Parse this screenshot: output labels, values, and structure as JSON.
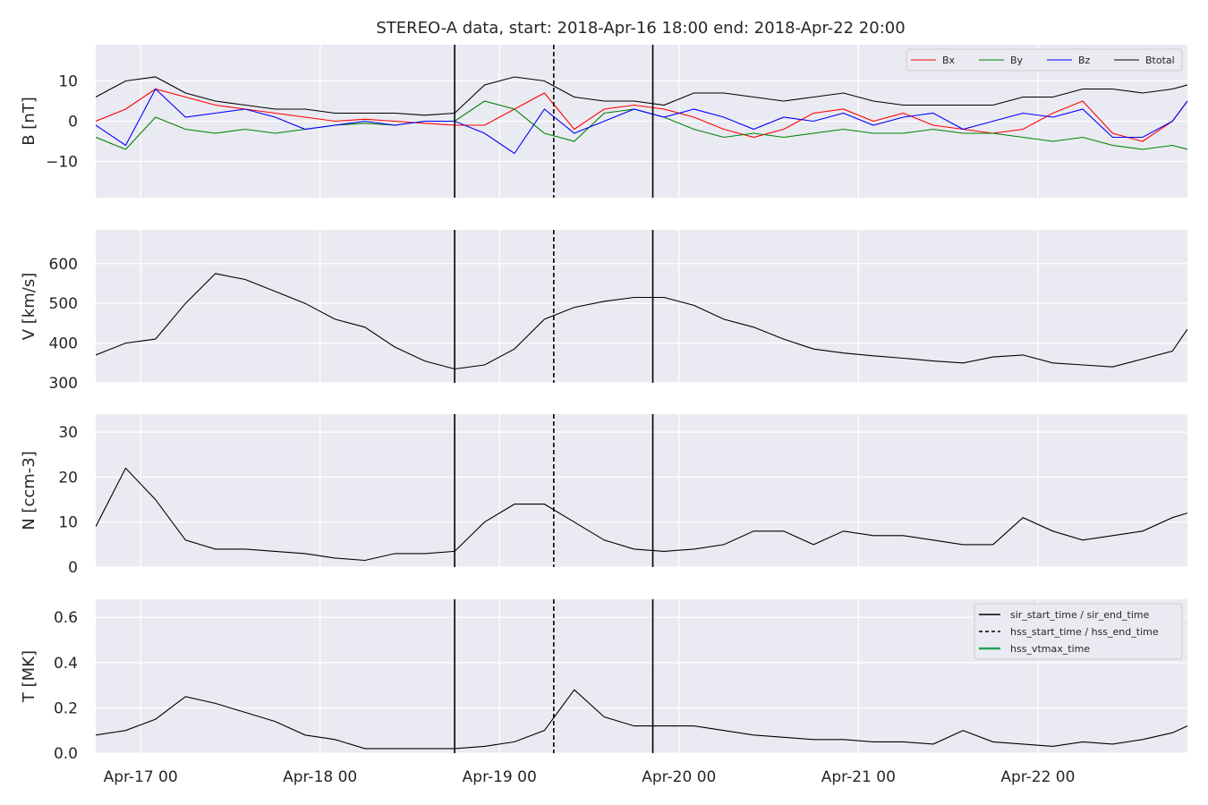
{
  "title": "STEREO-A data, start: 2018-Apr-16 18:00  end: 2018-Apr-22 20:00",
  "colors": {
    "panel_bg": "#eaeaf2",
    "grid": "#ffffff",
    "Bx": "#ff0000",
    "By": "#008000",
    "Bz": "#0000ff",
    "Btotal": "#000000",
    "hss_vtmax": "#2ca05a"
  },
  "x_tick_labels": [
    "Apr-17 00",
    "Apr-18 00",
    "Apr-19 00",
    "Apr-20 00",
    "Apr-21 00",
    "Apr-22 00"
  ],
  "event_lines": [
    {
      "style": "solid",
      "time": "2018-04-18 18:00"
    },
    {
      "style": "dashed",
      "time": "2018-04-19 07:15"
    },
    {
      "style": "solid",
      "time": "2018-04-19 20:30"
    }
  ],
  "legend_top": [
    "Bx",
    "By",
    "Bz",
    "Btotal"
  ],
  "legend_bottom": [
    "sir_start_time / sir_end_time",
    "hss_start_time / hss_end_time",
    "hss_vtmax_time"
  ],
  "chart_data": [
    {
      "type": "line",
      "ylabel": "B [nT]",
      "ylim": [
        -19,
        19
      ],
      "yticks": [
        -10,
        0,
        10
      ],
      "ytick_labels": [
        "−10",
        "0",
        "10"
      ],
      "xlim": [
        "2018-04-16 18:00",
        "2018-04-22 20:00"
      ],
      "x": [
        "2018-04-16 18:00",
        "2018-04-16 22:00",
        "2018-04-17 02:00",
        "2018-04-17 06:00",
        "2018-04-17 10:00",
        "2018-04-17 14:00",
        "2018-04-17 18:00",
        "2018-04-17 22:00",
        "2018-04-18 02:00",
        "2018-04-18 06:00",
        "2018-04-18 10:00",
        "2018-04-18 14:00",
        "2018-04-18 18:00",
        "2018-04-18 22:00",
        "2018-04-19 02:00",
        "2018-04-19 06:00",
        "2018-04-19 10:00",
        "2018-04-19 14:00",
        "2018-04-19 18:00",
        "2018-04-19 22:00",
        "2018-04-20 02:00",
        "2018-04-20 06:00",
        "2018-04-20 10:00",
        "2018-04-20 14:00",
        "2018-04-20 18:00",
        "2018-04-20 22:00",
        "2018-04-21 02:00",
        "2018-04-21 06:00",
        "2018-04-21 10:00",
        "2018-04-21 14:00",
        "2018-04-21 18:00",
        "2018-04-21 22:00",
        "2018-04-22 02:00",
        "2018-04-22 06:00",
        "2018-04-22 10:00",
        "2018-04-22 14:00",
        "2018-04-22 18:00",
        "2018-04-22 20:00"
      ],
      "series": [
        {
          "name": "Bx",
          "values": [
            0,
            3,
            8,
            6,
            4,
            3,
            2,
            1,
            0,
            0.5,
            0,
            -0.5,
            -1,
            -1,
            3,
            7,
            -2,
            3,
            4,
            3,
            1,
            -2,
            -4,
            -2,
            2,
            3,
            0,
            2,
            -1,
            -2,
            -3,
            -2,
            2,
            5,
            -3,
            -5,
            0,
            5
          ]
        },
        {
          "name": "By",
          "values": [
            -4,
            -7,
            1,
            -2,
            -3,
            -2,
            -3,
            -2,
            -1,
            -0.5,
            -1,
            0,
            0,
            5,
            3,
            -3,
            -5,
            2,
            3,
            1,
            -2,
            -4,
            -3,
            -4,
            -3,
            -2,
            -3,
            -3,
            -2,
            -3,
            -3,
            -4,
            -5,
            -4,
            -6,
            -7,
            -6,
            -7
          ]
        },
        {
          "name": "Bz",
          "values": [
            -1,
            -6,
            8,
            1,
            2,
            3,
            1,
            -2,
            -1,
            0,
            -1,
            0,
            0,
            -3,
            -8,
            3,
            -3,
            0,
            3,
            1,
            3,
            1,
            -2,
            1,
            0,
            2,
            -1,
            1,
            2,
            -2,
            0,
            2,
            1,
            3,
            -4,
            -4,
            0,
            5
          ]
        },
        {
          "name": "Btotal",
          "values": [
            6,
            10,
            11,
            7,
            5,
            4,
            3,
            3,
            2,
            2,
            2,
            1.5,
            2,
            9,
            11,
            10,
            6,
            5,
            5,
            4,
            7,
            7,
            6,
            5,
            6,
            7,
            5,
            4,
            4,
            4,
            4,
            6,
            6,
            8,
            8,
            7,
            8,
            9
          ]
        }
      ]
    },
    {
      "type": "line",
      "ylabel": "V [km/s]",
      "ylim": [
        300,
        685
      ],
      "yticks": [
        300,
        400,
        500,
        600
      ],
      "ytick_labels": [
        "300",
        "400",
        "500",
        "600"
      ],
      "xlim": [
        "2018-04-16 18:00",
        "2018-04-22 20:00"
      ],
      "x": [
        "2018-04-16 18:00",
        "2018-04-16 22:00",
        "2018-04-17 02:00",
        "2018-04-17 06:00",
        "2018-04-17 10:00",
        "2018-04-17 14:00",
        "2018-04-17 18:00",
        "2018-04-17 22:00",
        "2018-04-18 02:00",
        "2018-04-18 06:00",
        "2018-04-18 10:00",
        "2018-04-18 14:00",
        "2018-04-18 18:00",
        "2018-04-18 22:00",
        "2018-04-19 02:00",
        "2018-04-19 06:00",
        "2018-04-19 10:00",
        "2018-04-19 14:00",
        "2018-04-19 18:00",
        "2018-04-19 22:00",
        "2018-04-20 02:00",
        "2018-04-20 06:00",
        "2018-04-20 10:00",
        "2018-04-20 14:00",
        "2018-04-20 18:00",
        "2018-04-20 22:00",
        "2018-04-21 02:00",
        "2018-04-21 06:00",
        "2018-04-21 10:00",
        "2018-04-21 14:00",
        "2018-04-21 18:00",
        "2018-04-21 22:00",
        "2018-04-22 02:00",
        "2018-04-22 06:00",
        "2018-04-22 10:00",
        "2018-04-22 14:00",
        "2018-04-22 18:00",
        "2018-04-22 20:00"
      ],
      "series": [
        {
          "values": [
            370,
            400,
            410,
            500,
            575,
            560,
            530,
            500,
            460,
            440,
            390,
            355,
            335,
            345,
            385,
            460,
            490,
            505,
            515,
            515,
            495,
            460,
            440,
            410,
            385,
            375,
            368,
            362,
            355,
            350,
            365,
            370,
            350,
            345,
            340,
            360,
            380,
            435
          ]
        }
      ]
    },
    {
      "type": "line",
      "ylabel": "N [ccm-3]",
      "ylim": [
        0,
        34
      ],
      "yticks": [
        0,
        10,
        20,
        30
      ],
      "ytick_labels": [
        "0",
        "10",
        "20",
        "30"
      ],
      "xlim": [
        "2018-04-16 18:00",
        "2018-04-22 20:00"
      ],
      "x": [
        "2018-04-16 18:00",
        "2018-04-16 22:00",
        "2018-04-17 02:00",
        "2018-04-17 06:00",
        "2018-04-17 10:00",
        "2018-04-17 14:00",
        "2018-04-17 18:00",
        "2018-04-17 22:00",
        "2018-04-18 02:00",
        "2018-04-18 06:00",
        "2018-04-18 10:00",
        "2018-04-18 14:00",
        "2018-04-18 18:00",
        "2018-04-18 22:00",
        "2018-04-19 02:00",
        "2018-04-19 06:00",
        "2018-04-19 10:00",
        "2018-04-19 14:00",
        "2018-04-19 18:00",
        "2018-04-19 22:00",
        "2018-04-20 02:00",
        "2018-04-20 06:00",
        "2018-04-20 10:00",
        "2018-04-20 14:00",
        "2018-04-20 18:00",
        "2018-04-20 22:00",
        "2018-04-21 02:00",
        "2018-04-21 06:00",
        "2018-04-21 10:00",
        "2018-04-21 14:00",
        "2018-04-21 18:00",
        "2018-04-21 22:00",
        "2018-04-22 02:00",
        "2018-04-22 06:00",
        "2018-04-22 10:00",
        "2018-04-22 14:00",
        "2018-04-22 18:00",
        "2018-04-22 20:00"
      ],
      "series": [
        {
          "values": [
            9,
            22,
            15,
            6,
            4,
            4,
            3.5,
            3,
            2,
            1.5,
            3,
            3,
            3.5,
            10,
            14,
            14,
            10,
            6,
            4,
            3.5,
            4,
            5,
            8,
            8,
            5,
            8,
            7,
            7,
            6,
            5,
            5,
            11,
            8,
            6,
            7,
            8,
            11,
            12
          ]
        }
      ]
    },
    {
      "type": "line",
      "ylabel": "T [MK]",
      "ylim": [
        0,
        0.68
      ],
      "yticks": [
        0.0,
        0.2,
        0.4,
        0.6
      ],
      "ytick_labels": [
        "0.0",
        "0.2",
        "0.4",
        "0.6"
      ],
      "xlim": [
        "2018-04-16 18:00",
        "2018-04-22 20:00"
      ],
      "x": [
        "2018-04-16 18:00",
        "2018-04-16 22:00",
        "2018-04-17 02:00",
        "2018-04-17 06:00",
        "2018-04-17 10:00",
        "2018-04-17 14:00",
        "2018-04-17 18:00",
        "2018-04-17 22:00",
        "2018-04-18 02:00",
        "2018-04-18 06:00",
        "2018-04-18 10:00",
        "2018-04-18 14:00",
        "2018-04-18 18:00",
        "2018-04-18 22:00",
        "2018-04-19 02:00",
        "2018-04-19 06:00",
        "2018-04-19 10:00",
        "2018-04-19 14:00",
        "2018-04-19 18:00",
        "2018-04-19 22:00",
        "2018-04-20 02:00",
        "2018-04-20 06:00",
        "2018-04-20 10:00",
        "2018-04-20 14:00",
        "2018-04-20 18:00",
        "2018-04-20 22:00",
        "2018-04-21 02:00",
        "2018-04-21 06:00",
        "2018-04-21 10:00",
        "2018-04-21 14:00",
        "2018-04-21 18:00",
        "2018-04-21 22:00",
        "2018-04-22 02:00",
        "2018-04-22 06:00",
        "2018-04-22 10:00",
        "2018-04-22 14:00",
        "2018-04-22 18:00",
        "2018-04-22 20:00"
      ],
      "series": [
        {
          "values": [
            0.08,
            0.1,
            0.15,
            0.25,
            0.22,
            0.18,
            0.14,
            0.08,
            0.06,
            0.02,
            0.02,
            0.02,
            0.02,
            0.03,
            0.05,
            0.1,
            0.28,
            0.16,
            0.12,
            0.12,
            0.12,
            0.1,
            0.08,
            0.07,
            0.06,
            0.06,
            0.05,
            0.05,
            0.04,
            0.1,
            0.05,
            0.04,
            0.03,
            0.05,
            0.04,
            0.06,
            0.09,
            0.12
          ]
        }
      ]
    }
  ]
}
